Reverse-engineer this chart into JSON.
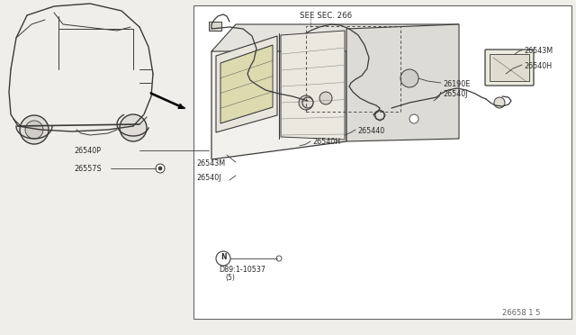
{
  "bg_color": "#f0eeea",
  "line_color": "#3a3a3a",
  "text_color": "#2a2a2a",
  "diagram_code": "26658 1 5",
  "see_sec": "SEE SEC. 266",
  "parts_labels": {
    "26543M_top": [
      490,
      295,
      "26543M"
    ],
    "26540H_top": [
      565,
      265,
      "26540H"
    ],
    "26540J_top": [
      490,
      245,
      "26540J"
    ],
    "265440": [
      395,
      220,
      "265440"
    ],
    "26540H_mid": [
      335,
      205,
      "26540H"
    ],
    "26543M_low": [
      255,
      180,
      "26543M"
    ],
    "26540J_low": [
      255,
      162,
      "26540J"
    ],
    "26540P": [
      80,
      168,
      "26540P"
    ],
    "26557S": [
      80,
      148,
      "26557S"
    ],
    "26190E": [
      510,
      168,
      "26190E"
    ]
  }
}
